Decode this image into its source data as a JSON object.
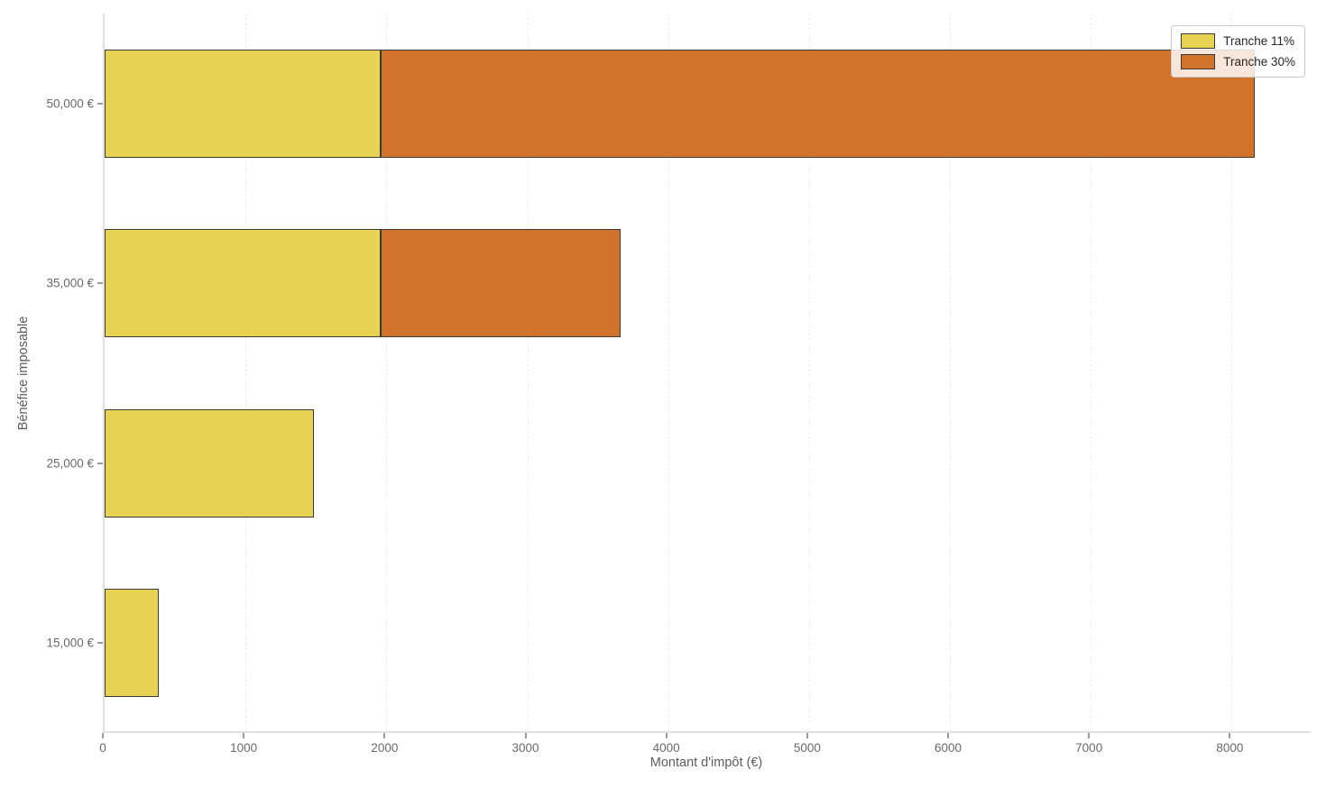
{
  "chart_data": {
    "type": "bar",
    "orientation": "horizontal",
    "stacked": true,
    "title": "",
    "xlabel": "Montant d'impôt (€)",
    "ylabel": "Bénéfice imposable",
    "categories_top_to_bottom": [
      "50,000 €",
      "35,000 €",
      "25,000 €",
      "15,000 €"
    ],
    "series": [
      {
        "name": "Tranche 11%",
        "color": "#e7d254",
        "values": [
          1959.98,
          1959.98,
          1485.33,
          385.33
        ]
      },
      {
        "name": "Tranche 30%",
        "color": "#d2732c",
        "values": [
          6205.5,
          1705.5,
          0,
          0
        ]
      }
    ],
    "totals": [
      8165.48,
      3665.48,
      1485.33,
      385.33
    ],
    "x_ticks": [
      0,
      1000,
      2000,
      3000,
      4000,
      5000,
      6000,
      7000,
      8000
    ],
    "xlim": [
      0,
      8574
    ],
    "grid": "vertical-dashed",
    "legend_position": "top-right",
    "bar_edge_color": "#3a3a3a",
    "bar_height_fraction": 0.6
  },
  "legend": {
    "items": [
      {
        "label": "Tranche 11%",
        "color": "#e7d254"
      },
      {
        "label": "Tranche 30%",
        "color": "#d2732c"
      }
    ]
  },
  "style": {
    "spine_color": "#e0e0e0",
    "grid_color": "#ececec",
    "tick_color": "#9a9a9a",
    "tick_label_color": "#696969",
    "axis_label_color": "#5c5c5c",
    "background": "#ffffff"
  }
}
